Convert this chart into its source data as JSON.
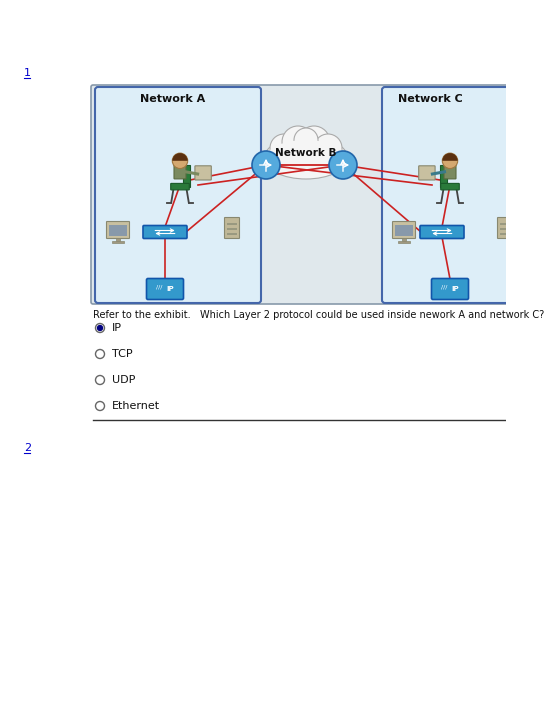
{
  "bg_color": "#ffffff",
  "question_number": "1",
  "question_number2": "2",
  "question_text": "Refer to the exhibit.   Which Layer 2 protocol could be used inside nework A and network C?",
  "options": [
    {
      "label": "IP",
      "selected": true
    },
    {
      "label": "TCP",
      "selected": false
    },
    {
      "label": "UDP",
      "selected": false
    },
    {
      "label": "Ethernet",
      "selected": false
    }
  ],
  "network_a_label": "Network A",
  "network_b_label": "Network B",
  "network_c_label": "Network C",
  "box_color_a": "#4466aa",
  "box_color_c": "#4466aa",
  "router_color": "#4499cc",
  "line_color_red": "#cc2222",
  "outer_box_color": "#8899aa",
  "cloud_fill": "#f5f5f5",
  "cloud_ec": "#aaaaaa"
}
